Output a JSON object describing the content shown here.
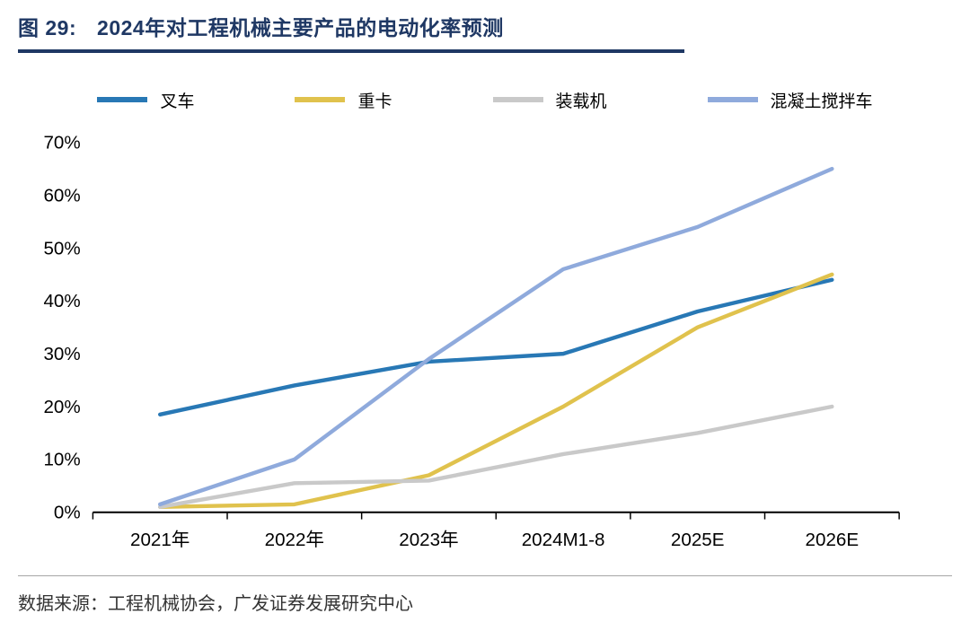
{
  "figure": {
    "label": "图 29:",
    "title": "2024年对工程机械主要产品的电动化率预测",
    "source": "数据来源：工程机械协会，广发证券发展研究中心"
  },
  "colors": {
    "title_navy": "#1F3864",
    "axis_black": "#000000",
    "footer_rule_gray": "#a6a6a6"
  },
  "chart_data": {
    "type": "line",
    "title": "2024年对工程机械主要产品的电动化率预测",
    "categories": [
      "2021年",
      "2022年",
      "2023年",
      "2024M1-8",
      "2025E",
      "2026E"
    ],
    "series": [
      {
        "name": "叉车",
        "color": "#2878B5",
        "values": [
          18.5,
          24,
          28.5,
          30,
          38,
          44
        ]
      },
      {
        "name": "重卡",
        "color": "#E0C24D",
        "values": [
          1,
          1.5,
          7,
          20,
          35,
          45
        ]
      },
      {
        "name": "装载机",
        "color": "#C9C9C9",
        "values": [
          1,
          5.5,
          6,
          11,
          15,
          20
        ]
      },
      {
        "name": "混凝土搅拌车",
        "color": "#8FAADC",
        "values": [
          1.5,
          10,
          29,
          46,
          54,
          65
        ]
      }
    ],
    "xlabel": "",
    "ylabel": "",
    "ylim": [
      0,
      70
    ],
    "ytick_step": 10,
    "ytick_suffix": "%",
    "grid": false,
    "legend_position": "top"
  }
}
